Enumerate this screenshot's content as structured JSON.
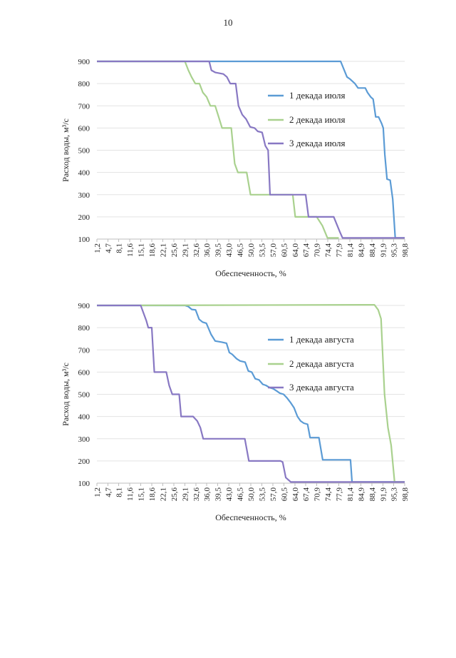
{
  "page_number": "10",
  "chart_data": [
    {
      "type": "line",
      "ylabel": "Расход воды, м³/с",
      "xlabel": "Обеспеченность, %",
      "ylim": [
        100,
        900
      ],
      "yticks": [
        100,
        200,
        300,
        400,
        500,
        600,
        700,
        800,
        900
      ],
      "x": [
        1.2,
        4.7,
        8.1,
        11.6,
        15.1,
        18.6,
        22.1,
        25.6,
        29.1,
        32.6,
        36.0,
        39.5,
        43.0,
        46.5,
        50.0,
        53.5,
        57.0,
        60.5,
        64.0,
        67.4,
        70.9,
        74.4,
        77.9,
        81.4,
        84.9,
        88.4,
        91.9,
        95.3,
        98.8
      ],
      "xtick_labels": [
        "1,2",
        "4,7",
        "8,1",
        "11,6",
        "15,1",
        "18,6",
        "22,1",
        "25,6",
        "29,1",
        "32,6",
        "36,0",
        "39,5",
        "43,0",
        "46,5",
        "50,0",
        "53,5",
        "57,0",
        "60,5",
        "64,0",
        "67,4",
        "70,9",
        "74,4",
        "77,9",
        "81,4",
        "84,9",
        "88,4",
        "91,9",
        "95,3",
        "98,8"
      ],
      "grid": true,
      "legend_position": "right",
      "series": [
        {
          "name": "1 декада июля",
          "color": "#5b9bd5",
          "points": [
            [
              1.2,
              900
            ],
            [
              78.5,
              900
            ],
            [
              80.5,
              830
            ],
            [
              81.5,
              820
            ],
            [
              83,
              800
            ],
            [
              84,
              780
            ],
            [
              86.3,
              780
            ],
            [
              87,
              760
            ],
            [
              88,
              740
            ],
            [
              88.8,
              730
            ],
            [
              89.6,
              650
            ],
            [
              90.5,
              650
            ],
            [
              91.5,
              620
            ],
            [
              92,
              600
            ],
            [
              92.5,
              480
            ],
            [
              93.2,
              370
            ],
            [
              94.2,
              365
            ],
            [
              95.0,
              280
            ],
            [
              95.8,
              105
            ],
            [
              98.8,
              105
            ]
          ]
        },
        {
          "name": "2 декада июля",
          "color": "#a9d18e",
          "points": [
            [
              1.2,
              900
            ],
            [
              29.1,
              900
            ],
            [
              30.2,
              860
            ],
            [
              31.2,
              830
            ],
            [
              32.4,
              800
            ],
            [
              33.7,
              800
            ],
            [
              34.8,
              760
            ],
            [
              36,
              740
            ],
            [
              37.2,
              700
            ],
            [
              38.7,
              700
            ],
            [
              39.8,
              650
            ],
            [
              40.9,
              600
            ],
            [
              43.8,
              600
            ],
            [
              44.9,
              440
            ],
            [
              45.9,
              400
            ],
            [
              48.7,
              400
            ],
            [
              49.9,
              300
            ],
            [
              63.3,
              300
            ],
            [
              64.1,
              200
            ],
            [
              70.9,
              200
            ],
            [
              72.7,
              160
            ],
            [
              74.3,
              105
            ],
            [
              77.9,
              105
            ]
          ]
        },
        {
          "name": "3 декада июля",
          "color": "#8878c3",
          "points": [
            [
              1.2,
              900
            ],
            [
              36.8,
              900
            ],
            [
              37.5,
              860
            ],
            [
              38.8,
              850
            ],
            [
              41.3,
              843
            ],
            [
              42.4,
              830
            ],
            [
              43.5,
              800
            ],
            [
              45.2,
              800
            ],
            [
              46.1,
              700
            ],
            [
              47.3,
              660
            ],
            [
              48.5,
              640
            ],
            [
              49.8,
              605
            ],
            [
              51.2,
              600
            ],
            [
              52.2,
              585
            ],
            [
              53.6,
              580
            ],
            [
              54.6,
              520
            ],
            [
              55.5,
              500
            ],
            [
              56.1,
              300
            ],
            [
              67.4,
              300
            ],
            [
              68.3,
              200
            ],
            [
              76.3,
              200
            ],
            [
              78.3,
              130
            ],
            [
              79.1,
              105
            ],
            [
              98.8,
              105
            ]
          ]
        }
      ]
    },
    {
      "type": "line",
      "ylabel": "Расход воды, м³/с",
      "xlabel": "Обеспеченность, %",
      "ylim": [
        100,
        900
      ],
      "yticks": [
        100,
        200,
        300,
        400,
        500,
        600,
        700,
        800,
        900
      ],
      "x": [
        1.2,
        4.7,
        8.1,
        11.6,
        15.1,
        18.6,
        22.1,
        25.6,
        29.1,
        32.6,
        36.0,
        39.5,
        43.0,
        46.5,
        50.0,
        53.5,
        57.0,
        60.5,
        64.0,
        67.4,
        70.9,
        74.4,
        77.9,
        81.4,
        84.9,
        88.4,
        91.9,
        95.3,
        98.8
      ],
      "xtick_labels": [
        "1,2",
        "4,7",
        "8,1",
        "11,6",
        "15,1",
        "18,6",
        "22,1",
        "25,6",
        "29,1",
        "32,6",
        "36,0",
        "39,5",
        "43,0",
        "46,5",
        "50,0",
        "53,5",
        "57,0",
        "60,5",
        "64,0",
        "67,4",
        "70,9",
        "74,4",
        "77,9",
        "81,4",
        "84,9",
        "88,4",
        "91,9",
        "95,3",
        "98,8"
      ],
      "grid": true,
      "legend_position": "right",
      "series": [
        {
          "name": "1 декада августа",
          "color": "#5b9bd5",
          "points": [
            [
              1.2,
              900
            ],
            [
              29.1,
              900
            ],
            [
              30.2,
              895
            ],
            [
              31.3,
              882
            ],
            [
              32.5,
              880
            ],
            [
              33.6,
              838
            ],
            [
              34.7,
              825
            ],
            [
              35.9,
              820
            ],
            [
              37.4,
              770
            ],
            [
              38.7,
              740
            ],
            [
              40.8,
              735
            ],
            [
              42.3,
              730
            ],
            [
              43.2,
              688
            ],
            [
              44.1,
              680
            ],
            [
              45.5,
              660
            ],
            [
              46.6,
              650
            ],
            [
              48.2,
              645
            ],
            [
              49.2,
              605
            ],
            [
              50.3,
              600
            ],
            [
              51.4,
              570
            ],
            [
              52.6,
              565
            ],
            [
              53.8,
              545
            ],
            [
              54.8,
              540
            ],
            [
              56,
              530
            ],
            [
              57.1,
              525
            ],
            [
              58.2,
              515
            ],
            [
              59.2,
              505
            ],
            [
              60.4,
              500
            ],
            [
              61.4,
              485
            ],
            [
              62.5,
              465
            ],
            [
              63.7,
              440
            ],
            [
              64.8,
              400
            ],
            [
              65.8,
              380
            ],
            [
              66.8,
              370
            ],
            [
              68,
              365
            ],
            [
              68.8,
              305
            ],
            [
              71.6,
              305
            ],
            [
              72.8,
              205
            ],
            [
              81.6,
              205
            ],
            [
              82.1,
              105
            ],
            [
              98.8,
              105
            ]
          ]
        },
        {
          "name": "2 декада августа",
          "color": "#a9d18e",
          "points": [
            [
              1.2,
              900
            ],
            [
              89.2,
              903
            ],
            [
              90.4,
              880
            ],
            [
              91.3,
              840
            ],
            [
              92.4,
              500
            ],
            [
              93.5,
              350
            ],
            [
              94.5,
              270
            ],
            [
              95.6,
              105
            ],
            [
              98.8,
              105
            ]
          ]
        },
        {
          "name": "3 декада августа",
          "color": "#8878c3",
          "points": [
            [
              1.2,
              900
            ],
            [
              15.1,
              900
            ],
            [
              16.9,
              830
            ],
            [
              17.5,
              800
            ],
            [
              18.6,
              800
            ],
            [
              19.4,
              600
            ],
            [
              23.2,
              600
            ],
            [
              24.1,
              540
            ],
            [
              25.1,
              500
            ],
            [
              27.3,
              500
            ],
            [
              27.9,
              400
            ],
            [
              31.7,
              400
            ],
            [
              33.0,
              380
            ],
            [
              34.0,
              350
            ],
            [
              34.9,
              300
            ],
            [
              48.1,
              300
            ],
            [
              49.4,
              200
            ],
            [
              59.4,
              200
            ],
            [
              60.1,
              195
            ],
            [
              61.1,
              125
            ],
            [
              62.7,
              105
            ],
            [
              98.8,
              105
            ]
          ]
        }
      ]
    }
  ]
}
